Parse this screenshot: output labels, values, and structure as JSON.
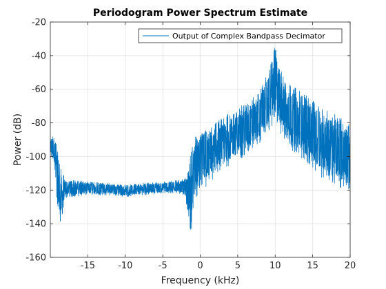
{
  "chart_data": {
    "type": "line",
    "title": "Periodogram Power Spectrum Estimate",
    "xlabel": "Frequency (kHz)",
    "ylabel": "Power (dB)",
    "xlim": [
      -20,
      20
    ],
    "ylim": [
      -160,
      -20
    ],
    "xticks": [
      -15,
      -10,
      -5,
      0,
      5,
      10,
      15,
      20
    ],
    "yticks": [
      -160,
      -140,
      -120,
      -100,
      -80,
      -60,
      -40,
      -20
    ],
    "grid": true,
    "legend_position": "top-right",
    "series": [
      {
        "name": "Output of Complex Bandpass Decimator",
        "color": "#0072bd",
        "envelope": {
          "x": [
            -20,
            -19.5,
            -19,
            -18.5,
            -18,
            -17,
            -15,
            -12,
            -10,
            -8,
            -5,
            -3,
            -2,
            -1.6,
            -1.3,
            -1,
            -0.5,
            0,
            1,
            2,
            4,
            6,
            8,
            9,
            9.6,
            10,
            10.4,
            11,
            12,
            14,
            16,
            18,
            19.5,
            20
          ],
          "upper": [
            -88,
            -86,
            -92,
            -108,
            -113,
            -114,
            -115,
            -116,
            -117,
            -116,
            -115,
            -114,
            -113,
            -108,
            -98,
            -93,
            -87,
            -85,
            -84,
            -80,
            -74,
            -68,
            -60,
            -50,
            -42,
            -32,
            -42,
            -52,
            -57,
            -63,
            -70,
            -75,
            -79,
            -80
          ],
          "lower": [
            -100,
            -105,
            -135,
            -142,
            -125,
            -124,
            -123,
            -123,
            -124,
            -123,
            -122,
            -122,
            -123,
            -140,
            -152,
            -132,
            -125,
            -122,
            -118,
            -113,
            -105,
            -100,
            -92,
            -86,
            -82,
            -80,
            -84,
            -90,
            -95,
            -104,
            -112,
            -117,
            -120,
            -125
          ]
        }
      }
    ]
  }
}
